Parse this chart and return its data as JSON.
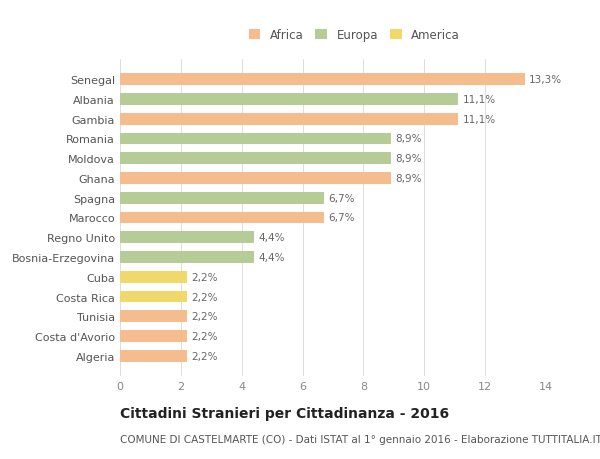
{
  "categories": [
    "Senegal",
    "Albania",
    "Gambia",
    "Romania",
    "Moldova",
    "Ghana",
    "Spagna",
    "Marocco",
    "Regno Unito",
    "Bosnia-Erzegovina",
    "Cuba",
    "Costa Rica",
    "Tunisia",
    "Costa d'Avorio",
    "Algeria"
  ],
  "values": [
    13.3,
    11.1,
    11.1,
    8.9,
    8.9,
    8.9,
    6.7,
    6.7,
    4.4,
    4.4,
    2.2,
    2.2,
    2.2,
    2.2,
    2.2
  ],
  "labels": [
    "13,3%",
    "11,1%",
    "11,1%",
    "8,9%",
    "8,9%",
    "8,9%",
    "6,7%",
    "6,7%",
    "4,4%",
    "4,4%",
    "2,2%",
    "2,2%",
    "2,2%",
    "2,2%",
    "2,2%"
  ],
  "colors": [
    "#f5bc8e",
    "#b5cc96",
    "#f5bc8e",
    "#b5cc96",
    "#b5cc96",
    "#f5bc8e",
    "#b5cc96",
    "#f5bc8e",
    "#b5cc96",
    "#b5cc96",
    "#f0d96a",
    "#f0d96a",
    "#f5bc8e",
    "#f5bc8e",
    "#f5bc8e"
  ],
  "legend_labels": [
    "Africa",
    "Europa",
    "America"
  ],
  "legend_colors": [
    "#f5bc8e",
    "#b5cc96",
    "#f0d96a"
  ],
  "xlim": [
    0,
    14
  ],
  "xticks": [
    0,
    2,
    4,
    6,
    8,
    10,
    12,
    14
  ],
  "title": "Cittadini Stranieri per Cittadinanza - 2016",
  "subtitle": "COMUNE DI CASTELMARTE (CO) - Dati ISTAT al 1° gennaio 2016 - Elaborazione TUTTITALIA.IT",
  "bg_color": "#ffffff",
  "bar_height": 0.6,
  "title_fontsize": 10,
  "subtitle_fontsize": 7.5,
  "label_fontsize": 7.5,
  "tick_fontsize": 8,
  "legend_fontsize": 8.5
}
